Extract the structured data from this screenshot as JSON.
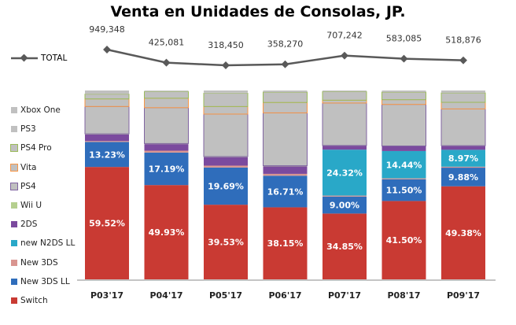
{
  "chart_data": {
    "type": "bar",
    "stacked": "percent",
    "title": "Venta en Unidades de Consolas, JP.",
    "categories": [
      "P03'17",
      "P04'17",
      "P05'17",
      "P06'17",
      "P07'17",
      "P08'17",
      "P09'17"
    ],
    "series": [
      {
        "name": "Switch",
        "color": "#c93a33",
        "values": [
          59.52,
          49.93,
          39.53,
          38.15,
          34.85,
          41.5,
          49.38
        ],
        "labeled": true
      },
      {
        "name": "New 3DS LL",
        "color": "#2f6dbb",
        "values": [
          13.23,
          17.19,
          19.69,
          16.71,
          9.0,
          11.5,
          9.88
        ],
        "labeled": true
      },
      {
        "name": "New 3DS",
        "color": "#d99590",
        "values": [
          0.5,
          1,
          1,
          1,
          0.5,
          0.5,
          0.5
        ]
      },
      {
        "name": "new N2DS LL",
        "color": "#29a8c8",
        "values": [
          0,
          0,
          0,
          0,
          24.32,
          14.44,
          8.97
        ],
        "labeled": true
      },
      {
        "name": "2DS",
        "color": "#7b4a9e",
        "values": [
          3.5,
          3.5,
          4.5,
          4,
          2,
          2.5,
          2
        ]
      },
      {
        "name": "Wii U",
        "color": "#b5cf8f",
        "values": [
          0.3,
          0.3,
          0.3,
          0.3,
          0.2,
          0.2,
          0.2
        ]
      },
      {
        "name": "PS4",
        "color": "#c0c0c0",
        "border": "#8064a2",
        "values": [
          14.5,
          19,
          22.5,
          28,
          22.5,
          22,
          19.5
        ]
      },
      {
        "name": "Vita",
        "color": "#c0c0c0",
        "border": "#f79646",
        "values": [
          4,
          5,
          4,
          5.5,
          1.5,
          2.5,
          3.5
        ]
      },
      {
        "name": "PS4 Pro",
        "color": "#c0c0c0",
        "border": "#9bbb59",
        "values": [
          2.5,
          3.5,
          7,
          5.5,
          4.5,
          4,
          5
        ]
      },
      {
        "name": "PS3",
        "color": "#c0c0c0",
        "values": [
          0.2,
          0.2,
          0.3,
          0.2,
          0.2,
          0.2,
          0.2
        ]
      },
      {
        "name": "Xbox One",
        "color": "#c0c0c0",
        "values": [
          1.75,
          0.38,
          1.18,
          0.64,
          0.43,
          0.66,
          1.07
        ]
      }
    ],
    "line_series": {
      "name": "TOTAL",
      "color": "#595959",
      "values": [
        949348,
        425081,
        318450,
        358270,
        707242,
        583085,
        518876
      ],
      "labels": [
        "949,348",
        "425,081",
        "318,450",
        "358,270",
        "707,242",
        "583,085",
        "518,876"
      ]
    },
    "ylim": [
      0,
      100
    ],
    "grid": false,
    "legend": "left"
  }
}
